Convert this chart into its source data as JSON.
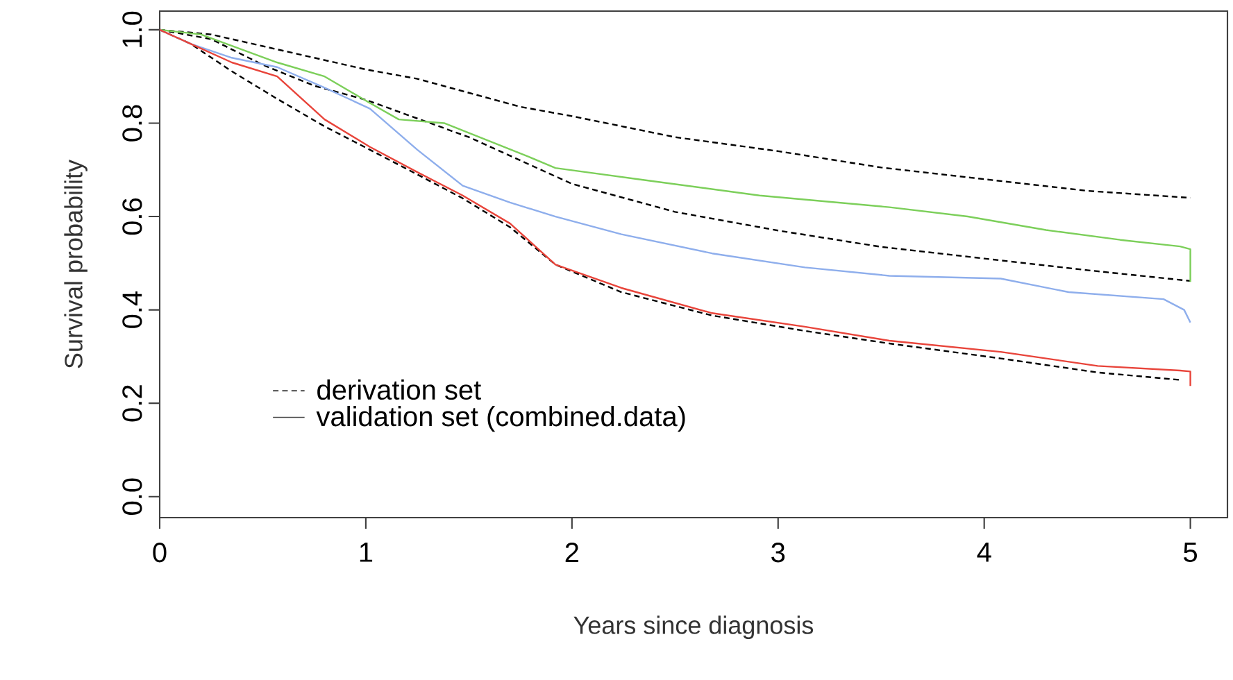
{
  "chart_data": {
    "type": "line",
    "xlabel": "Years since diagnosis",
    "ylabel": "Survival probability",
    "xlim": [
      0,
      5.18
    ],
    "ylim": [
      -0.045,
      1.04
    ],
    "xticks": [
      0,
      1,
      2,
      3,
      4,
      5
    ],
    "yticks": [
      {
        "value": 0,
        "label": "0.0"
      },
      {
        "value": 0.2,
        "label": "0.2"
      },
      {
        "value": 0.4,
        "label": "0.4"
      },
      {
        "value": 0.6,
        "label": "0.6"
      },
      {
        "value": 0.8,
        "label": "0.8"
      },
      {
        "value": 1,
        "label": "1.0"
      }
    ],
    "grid": false,
    "legend": "bottom left",
    "marker": "none",
    "annotations": [
      "validation set (combined.data)"
    ],
    "series": [
      {
        "name": "derivation set",
        "color": "#000000",
        "line_style": "dashed",
        "x": [
          0,
          0.25,
          0.5,
          0.75,
          1,
          1.25,
          1.5,
          1.75,
          2,
          2.5,
          3,
          3.5,
          4,
          4.5,
          5
        ],
        "values": [
          1,
          0.99,
          0.965,
          0.94,
          0.915,
          0.895,
          0.865,
          0.835,
          0.815,
          0.77,
          0.74,
          0.705,
          0.68,
          0.655,
          0.64
        ]
      },
      {
        "color": "#000000",
        "line_style": "dashed",
        "x": [
          0,
          0.25,
          0.5,
          0.75,
          1,
          1.25,
          1.5,
          1.75,
          2,
          2.5,
          3,
          3.5,
          4,
          4.5,
          5
        ],
        "values": [
          1,
          0.98,
          0.925,
          0.88,
          0.85,
          0.81,
          0.77,
          0.72,
          0.67,
          0.61,
          0.57,
          0.535,
          0.51,
          0.485,
          0.462
        ]
      },
      {
        "color": "#000000",
        "line_style": "dashed",
        "x": [
          0,
          0.15,
          0.35,
          0.57,
          0.8,
          1.02,
          1.25,
          1.47,
          1.7,
          1.92,
          2.24,
          2.68,
          3.13,
          3.54,
          4.08,
          4.55,
          4.95
        ],
        "values": [
          1,
          0.97,
          0.911,
          0.852,
          0.793,
          0.743,
          0.69,
          0.639,
          0.577,
          0.497,
          0.438,
          0.388,
          0.355,
          0.328,
          0.296,
          0.266,
          0.25
        ]
      },
      {
        "color": "#7ccf5a",
        "line_style": "solid",
        "x": [
          0,
          0.2,
          0.57,
          0.8,
          1.02,
          1.16,
          1.38,
          1.79,
          1.92,
          2.32,
          2.91,
          3.54,
          3.92,
          4.3,
          4.66,
          4.95,
          5,
          5
        ],
        "values": [
          1,
          0.99,
          0.93,
          0.9,
          0.843,
          0.808,
          0.8,
          0.728,
          0.704,
          0.68,
          0.645,
          0.62,
          0.6,
          0.571,
          0.55,
          0.536,
          0.53,
          0.46
        ]
      },
      {
        "color": "#8eaeec",
        "line_style": "solid",
        "x": [
          0,
          0.15,
          0.35,
          0.57,
          0.8,
          1.02,
          1.25,
          1.47,
          1.7,
          1.92,
          2.24,
          2.68,
          3.13,
          3.54,
          4.08,
          4.41,
          4.87,
          4.97,
          5
        ],
        "values": [
          1,
          0.97,
          0.94,
          0.92,
          0.876,
          0.831,
          0.743,
          0.666,
          0.63,
          0.6,
          0.562,
          0.521,
          0.491,
          0.473,
          0.467,
          0.438,
          0.423,
          0.4,
          0.373
        ]
      },
      {
        "color": "#e8443a",
        "line_style": "solid",
        "x": [
          0,
          0.15,
          0.35,
          0.57,
          0.8,
          1.02,
          1.25,
          1.47,
          1.7,
          1.92,
          2.24,
          2.68,
          3.13,
          3.54,
          4.08,
          4.55,
          4.95,
          5,
          5
        ],
        "values": [
          1,
          0.97,
          0.93,
          0.9,
          0.808,
          0.749,
          0.695,
          0.645,
          0.585,
          0.497,
          0.447,
          0.393,
          0.364,
          0.334,
          0.31,
          0.28,
          0.27,
          0.268,
          0.237
        ]
      }
    ]
  }
}
